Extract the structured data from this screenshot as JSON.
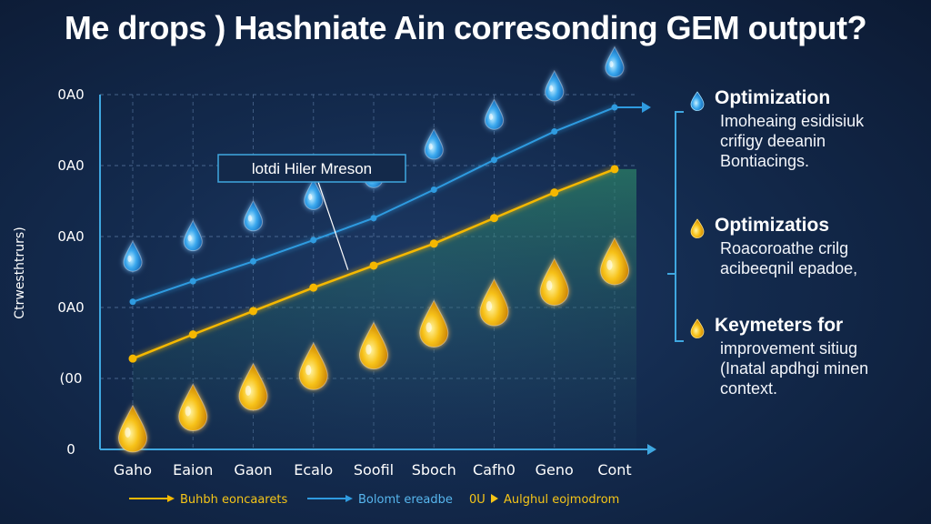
{
  "title": "Me drops ) Hashniate Ain corresonding GEM output?",
  "chart_data": {
    "type": "line",
    "title": "Me drops ) Hashniate Ain corresonding GEM output?",
    "ylabel": "Ctrwesthtrurs)",
    "xlabel": "",
    "categories": [
      "Gaho",
      "Eaion",
      "Gaon",
      "Ecalo",
      "Soofil",
      "Sboch",
      "Cafh0",
      "Geno",
      "Cont"
    ],
    "yticks": [
      "0",
      "(00",
      "0A0",
      "0A0",
      "0A0",
      "0A0"
    ],
    "ylim": [
      0,
      5
    ],
    "grid": true,
    "series": [
      {
        "name": "Buhbh eoncaarets",
        "color": "#f5b800",
        "values": [
          1.28,
          1.62,
          1.95,
          2.28,
          2.59,
          2.9,
          3.26,
          3.62,
          3.95
        ]
      },
      {
        "name": "Bolomt ereadbe",
        "color": "#2f9be0",
        "values": [
          2.08,
          2.37,
          2.65,
          2.95,
          3.26,
          3.66,
          4.08,
          4.48,
          4.82
        ]
      },
      {
        "name": "Aulghul eojmodrom",
        "color": "#f5c518",
        "values": [
          0.43,
          0.73,
          1.02,
          1.31,
          1.6,
          1.91,
          2.21,
          2.5,
          2.79
        ]
      }
    ],
    "annotations": [
      {
        "text": "lotdi Hiler Mreson",
        "category": "Ecalo",
        "series": "Buhbh eoncaarets"
      }
    ],
    "legend_placement": "bottom",
    "legend_separator": "0U"
  },
  "side_panel": {
    "accent_color": "#3fa7e0",
    "items": [
      {
        "icon": "water-drop-icon",
        "heading": "Optimization",
        "lines": [
          "Imoheaing esidisiuk",
          "crifigy deeanin",
          "Bontiacings."
        ]
      },
      {
        "icon": "oil-drop-icon",
        "heading": "Optimizatios",
        "lines": [
          "Roacoroathe crilg",
          "acibeeqnil epadoe,"
        ]
      },
      {
        "icon": "oil-drop-icon",
        "heading": "Keymeters for",
        "lines": [
          "improvement sitiug",
          "(Inatal apdhgi minen",
          "context."
        ]
      }
    ]
  }
}
